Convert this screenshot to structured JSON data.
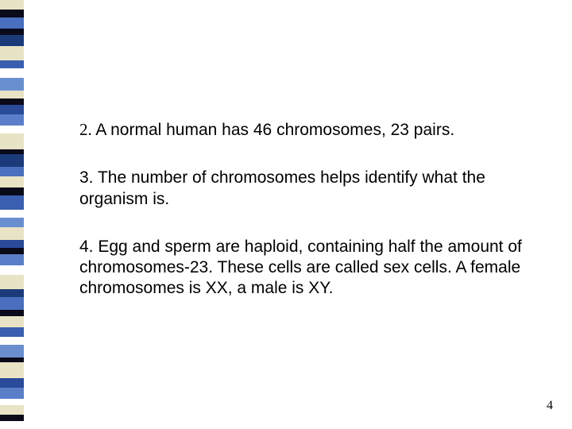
{
  "sidebar": {
    "stripes": [
      {
        "color": "#e8e3c5",
        "h": 12
      },
      {
        "color": "#0a0a1a",
        "h": 10
      },
      {
        "color": "#4a6fbf",
        "h": 14
      },
      {
        "color": "#0a0a1a",
        "h": 8
      },
      {
        "color": "#1a3a7a",
        "h": 14
      },
      {
        "color": "#e8e3c5",
        "h": 18
      },
      {
        "color": "#3a5fb0",
        "h": 10
      },
      {
        "color": "#ffffff",
        "h": 12
      },
      {
        "color": "#6a8fd0",
        "h": 16
      },
      {
        "color": "#e8e3c5",
        "h": 10
      },
      {
        "color": "#0a0a1a",
        "h": 8
      },
      {
        "color": "#2a4a9a",
        "h": 12
      },
      {
        "color": "#5a7fc8",
        "h": 14
      },
      {
        "color": "#ffffff",
        "h": 10
      },
      {
        "color": "#e8e3c5",
        "h": 20
      },
      {
        "color": "#0a0a1a",
        "h": 6
      },
      {
        "color": "#1a3a7a",
        "h": 16
      },
      {
        "color": "#4a6fbf",
        "h": 12
      },
      {
        "color": "#e8e3c5",
        "h": 14
      },
      {
        "color": "#0a0a1a",
        "h": 10
      },
      {
        "color": "#3a5fb0",
        "h": 18
      },
      {
        "color": "#ffffff",
        "h": 10
      },
      {
        "color": "#6a8fd0",
        "h": 12
      },
      {
        "color": "#e8e3c5",
        "h": 16
      },
      {
        "color": "#2a4a9a",
        "h": 10
      },
      {
        "color": "#0a0a1a",
        "h": 8
      },
      {
        "color": "#5a7fc8",
        "h": 14
      },
      {
        "color": "#ffffff",
        "h": 12
      },
      {
        "color": "#e8e3c5",
        "h": 18
      },
      {
        "color": "#1a3a7a",
        "h": 10
      },
      {
        "color": "#4a6fbf",
        "h": 16
      },
      {
        "color": "#0a0a1a",
        "h": 8
      },
      {
        "color": "#e8e3c5",
        "h": 14
      },
      {
        "color": "#3a5fb0",
        "h": 12
      },
      {
        "color": "#ffffff",
        "h": 10
      },
      {
        "color": "#6a8fd0",
        "h": 16
      },
      {
        "color": "#0a0a1a",
        "h": 6
      },
      {
        "color": "#e8e3c5",
        "h": 20
      },
      {
        "color": "#2a4a9a",
        "h": 12
      },
      {
        "color": "#5a7fc8",
        "h": 14
      },
      {
        "color": "#ffffff",
        "h": 8
      },
      {
        "color": "#e8e3c5",
        "h": 12
      },
      {
        "color": "#0a0a1a",
        "h": 8
      }
    ]
  },
  "content": {
    "items": [
      {
        "number": "2.",
        "text": "  A normal human has 46 chromosomes, 23 pairs."
      },
      {
        "number": "",
        "text": "3.  The number of chromosomes helps identify what the organism is."
      },
      {
        "number": "",
        "text": "4.  Egg and sperm are haploid, containing half the amount of chromosomes-23.  These cells are called sex cells.  A female chromosomes is XX, a male is XY."
      }
    ],
    "text_color": "#000000",
    "body_fontsize": 21,
    "number_font": "Times New Roman"
  },
  "page_number": "4",
  "background_color": "#ffffff"
}
